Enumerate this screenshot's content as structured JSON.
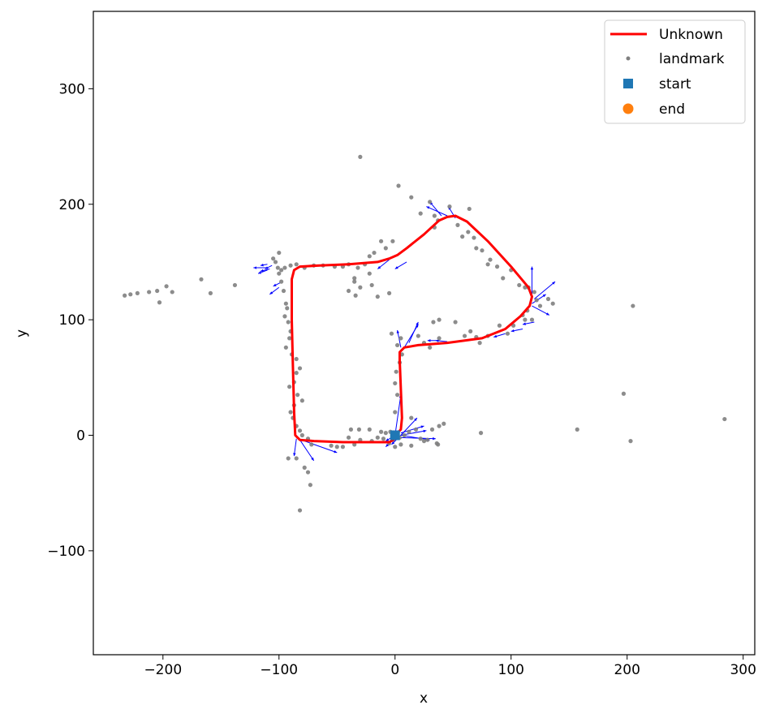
{
  "chart_data": {
    "type": "scatter",
    "xlabel": "x",
    "ylabel": "y",
    "xlim": [
      -260,
      310
    ],
    "ylim": [
      -190,
      367
    ],
    "xticks": [
      -200,
      -100,
      0,
      100,
      200,
      300
    ],
    "yticks": [
      -100,
      0,
      100,
      200,
      300
    ],
    "xtick_labels": [
      "−200",
      "−100",
      "0",
      "100",
      "200",
      "300"
    ],
    "ytick_labels": [
      "−100",
      "0",
      "100",
      "200",
      "300"
    ],
    "grid": false,
    "legend_position": "top-right",
    "legend": [
      {
        "key": "trajectory",
        "label": "Unknown",
        "marker": "line",
        "color": "#ff0000"
      },
      {
        "key": "landmark",
        "label": "landmark",
        "marker": "dot",
        "color": "#808080"
      },
      {
        "key": "start",
        "label": "start",
        "marker": "square",
        "color": "#1f77b4"
      },
      {
        "key": "end",
        "label": "end",
        "marker": "circle",
        "color": "#ff7f0e"
      }
    ],
    "trajectory": {
      "name": "Unknown",
      "color": "#ff0000",
      "points": [
        [
          0,
          0
        ],
        [
          5,
          5
        ],
        [
          6,
          15
        ],
        [
          5,
          40
        ],
        [
          4,
          65
        ],
        [
          4,
          72
        ],
        [
          8,
          76
        ],
        [
          20,
          78
        ],
        [
          45,
          80
        ],
        [
          75,
          84
        ],
        [
          95,
          92
        ],
        [
          108,
          103
        ],
        [
          116,
          112
        ],
        [
          118,
          120
        ],
        [
          115,
          128
        ],
        [
          100,
          146
        ],
        [
          80,
          168
        ],
        [
          62,
          185
        ],
        [
          52,
          190
        ],
        [
          45,
          189
        ],
        [
          38,
          186
        ],
        [
          25,
          174
        ],
        [
          10,
          162
        ],
        [
          2,
          156
        ],
        [
          -5,
          153
        ],
        [
          -15,
          150
        ],
        [
          -40,
          148
        ],
        [
          -65,
          147
        ],
        [
          -82,
          146
        ],
        [
          -87,
          143
        ],
        [
          -89,
          135
        ],
        [
          -89,
          100
        ],
        [
          -88,
          60
        ],
        [
          -87,
          20
        ],
        [
          -86,
          0
        ],
        [
          -82,
          -4
        ],
        [
          -70,
          -5
        ],
        [
          -45,
          -6
        ],
        [
          -20,
          -6
        ],
        [
          -5,
          -6
        ],
        [
          2,
          -2
        ],
        [
          3,
          0
        ]
      ]
    },
    "landmarks": [
      [
        -233,
        121
      ],
      [
        -228,
        122
      ],
      [
        -222,
        123
      ],
      [
        -212,
        124
      ],
      [
        -205,
        125
      ],
      [
        -203,
        115
      ],
      [
        -197,
        129
      ],
      [
        -192,
        124
      ],
      [
        -167,
        135
      ],
      [
        -159,
        123
      ],
      [
        -138,
        130
      ],
      [
        -30,
        241
      ],
      [
        3,
        216
      ],
      [
        14,
        206
      ],
      [
        30,
        202
      ],
      [
        47,
        198
      ],
      [
        64,
        196
      ],
      [
        22,
        192
      ],
      [
        34,
        190
      ],
      [
        37,
        186
      ],
      [
        34,
        180
      ],
      [
        54,
        182
      ],
      [
        63,
        176
      ],
      [
        58,
        172
      ],
      [
        68,
        171
      ],
      [
        70,
        162
      ],
      [
        75,
        160
      ],
      [
        82,
        152
      ],
      [
        80,
        148
      ],
      [
        88,
        146
      ],
      [
        100,
        143
      ],
      [
        93,
        136
      ],
      [
        107,
        130
      ],
      [
        112,
        128
      ],
      [
        115,
        128
      ],
      [
        120,
        124
      ],
      [
        122,
        117
      ],
      [
        125,
        112
      ],
      [
        132,
        118
      ],
      [
        136,
        114
      ],
      [
        114,
        108
      ],
      [
        110,
        104
      ],
      [
        112,
        100
      ],
      [
        118,
        100
      ],
      [
        -12,
        168
      ],
      [
        -2,
        168
      ],
      [
        -8,
        162
      ],
      [
        -18,
        158
      ],
      [
        -26,
        148
      ],
      [
        -32,
        145
      ],
      [
        -40,
        148
      ],
      [
        -45,
        146
      ],
      [
        -52,
        146
      ],
      [
        -62,
        147
      ],
      [
        -70,
        147
      ],
      [
        -78,
        145
      ],
      [
        -85,
        148
      ],
      [
        -90,
        147
      ],
      [
        -95,
        145
      ],
      [
        -98,
        143
      ],
      [
        -101,
        145
      ],
      [
        -103,
        150
      ],
      [
        -105,
        153
      ],
      [
        -100,
        158
      ],
      [
        -100,
        140
      ],
      [
        -98,
        133
      ],
      [
        -96,
        125
      ],
      [
        -94,
        114
      ],
      [
        -93,
        110
      ],
      [
        -95,
        103
      ],
      [
        -92,
        98
      ],
      [
        -90,
        90
      ],
      [
        -91,
        84
      ],
      [
        -94,
        76
      ],
      [
        -89,
        70
      ],
      [
        -85,
        66
      ],
      [
        -82,
        58
      ],
      [
        -85,
        54
      ],
      [
        -87,
        46
      ],
      [
        -91,
        42
      ],
      [
        -84,
        35
      ],
      [
        -80,
        30
      ],
      [
        -87,
        26
      ],
      [
        -90,
        20
      ],
      [
        -88,
        15
      ],
      [
        -85,
        8
      ],
      [
        -82,
        4
      ],
      [
        -80,
        0
      ],
      [
        -75,
        -3
      ],
      [
        -72,
        -8
      ],
      [
        -78,
        -28
      ],
      [
        -75,
        -32
      ],
      [
        -73,
        -43
      ],
      [
        -82,
        -65
      ],
      [
        -92,
        -20
      ],
      [
        -85,
        -20
      ],
      [
        -35,
        133
      ],
      [
        -40,
        125
      ],
      [
        -30,
        128
      ],
      [
        -20,
        130
      ],
      [
        -15,
        120
      ],
      [
        -5,
        123
      ],
      [
        -34,
        121
      ],
      [
        -35,
        136
      ],
      [
        -22,
        140
      ],
      [
        -22,
        155
      ],
      [
        -5,
        -7
      ],
      [
        -2,
        -4
      ],
      [
        -10,
        -3
      ],
      [
        -15,
        -2
      ],
      [
        -20,
        -5
      ],
      [
        -30,
        -4
      ],
      [
        -35,
        -8
      ],
      [
        -40,
        -2
      ],
      [
        -45,
        -10
      ],
      [
        -50,
        -10
      ],
      [
        -55,
        -9
      ],
      [
        -38,
        5
      ],
      [
        -31,
        5
      ],
      [
        -22,
        5
      ],
      [
        -12,
        3
      ],
      [
        -8,
        2
      ],
      [
        -4,
        3
      ],
      [
        4,
        -2
      ],
      [
        8,
        0
      ],
      [
        12,
        3
      ],
      [
        18,
        5
      ],
      [
        22,
        -3
      ],
      [
        25,
        -5
      ],
      [
        28,
        -4
      ],
      [
        32,
        5
      ],
      [
        38,
        8
      ],
      [
        42,
        10
      ],
      [
        36,
        -7
      ],
      [
        14,
        15
      ],
      [
        14,
        -9
      ],
      [
        5,
        -8
      ],
      [
        0,
        -10
      ],
      [
        0,
        20
      ],
      [
        2,
        35
      ],
      [
        0,
        45
      ],
      [
        1,
        55
      ],
      [
        4,
        63
      ],
      [
        6,
        70
      ],
      [
        2,
        78
      ],
      [
        5,
        84
      ],
      [
        -3,
        88
      ],
      [
        20,
        86
      ],
      [
        25,
        80
      ],
      [
        30,
        76
      ],
      [
        38,
        84
      ],
      [
        33,
        98
      ],
      [
        38,
        100
      ],
      [
        52,
        98
      ],
      [
        60,
        86
      ],
      [
        65,
        90
      ],
      [
        70,
        85
      ],
      [
        73,
        80
      ],
      [
        80,
        86
      ],
      [
        90,
        95
      ],
      [
        97,
        88
      ],
      [
        102,
        95
      ],
      [
        157,
        5
      ],
      [
        197,
        36
      ],
      [
        203,
        -5
      ],
      [
        205,
        112
      ],
      [
        284,
        14
      ],
      [
        74,
        2
      ],
      [
        37,
        -8
      ]
    ],
    "arrows": [
      [
        -110,
        145,
        -12,
        0
      ],
      [
        -110,
        143,
        -8,
        -3
      ],
      [
        -106,
        147,
        -6,
        -3
      ],
      [
        -110,
        148,
        -6,
        -1
      ],
      [
        -108,
        144,
        -8,
        -2
      ],
      [
        -100,
        128,
        -8,
        -6
      ],
      [
        -99,
        132,
        -6,
        -3
      ],
      [
        -5,
        152,
        -10,
        -8
      ],
      [
        10,
        150,
        -10,
        -6
      ],
      [
        40,
        190,
        -10,
        12
      ],
      [
        45,
        190,
        -18,
        8
      ],
      [
        52,
        188,
        -6,
        10
      ],
      [
        118,
        120,
        0,
        26
      ],
      [
        120,
        118,
        18,
        15
      ],
      [
        118,
        114,
        12,
        8
      ],
      [
        118,
        112,
        15,
        -8
      ],
      [
        95,
        88,
        -10,
        -3
      ],
      [
        110,
        92,
        -10,
        -2
      ],
      [
        120,
        98,
        -10,
        -2
      ],
      [
        45,
        81,
        -10,
        1
      ],
      [
        38,
        82,
        -10,
        0
      ],
      [
        5,
        76,
        -3,
        15
      ],
      [
        8,
        76,
        12,
        20
      ],
      [
        12,
        80,
        8,
        18
      ],
      [
        0,
        0,
        5,
        35
      ],
      [
        0,
        0,
        -8,
        -5
      ],
      [
        5,
        0,
        22,
        4
      ],
      [
        5,
        0,
        25,
        -4
      ],
      [
        5,
        -2,
        30,
        -1
      ],
      [
        5,
        0,
        14,
        15
      ],
      [
        5,
        2,
        20,
        6
      ],
      [
        5,
        0,
        -8,
        -8
      ],
      [
        2,
        0,
        -10,
        -10
      ],
      [
        -82,
        -4,
        12,
        -18
      ],
      [
        -85,
        -3,
        -2,
        -15
      ],
      [
        -78,
        -5,
        28,
        -10
      ]
    ]
  }
}
